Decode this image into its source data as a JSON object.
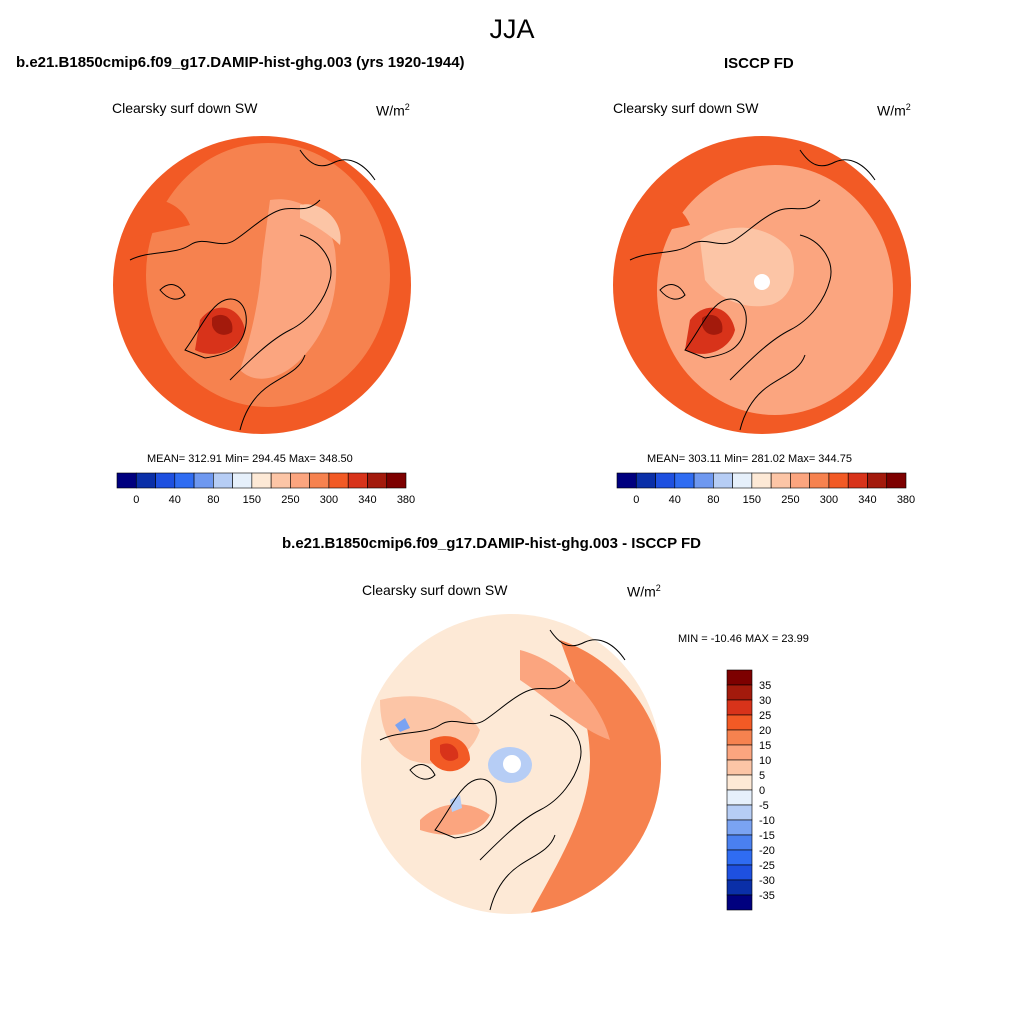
{
  "season_title": "JJA",
  "colors": {
    "abs_palette": [
      "#00007f",
      "#0a2fa8",
      "#1e50e0",
      "#2f6cf2",
      "#6e98f0",
      "#b6cdf5",
      "#e6f0fb",
      "#fde9d6",
      "#fcc5a6",
      "#fba57f",
      "#f6824f",
      "#f25a25",
      "#d8331a",
      "#a31a0c",
      "#7d0000"
    ],
    "diff_palette": [
      "#00007f",
      "#0a2fa8",
      "#1e50e0",
      "#2f6cf2",
      "#4a80f0",
      "#7aa3f2",
      "#b6cdf5",
      "#e6f0fb",
      "#fde9d6",
      "#fcc5a6",
      "#fba57f",
      "#f6824f",
      "#f25a25",
      "#d8331a",
      "#a31a0c",
      "#7d0000"
    ]
  },
  "panels": [
    {
      "title": "b.e21.B1850cmip6.f09_g17.DAMIP-hist-ghg.003 (yrs 1920-1944)",
      "variable": "Clearsky surf down SW",
      "units": {
        "base": "W/m",
        "exp": "2"
      },
      "stats": "MEAN= 312.91  Min= 294.45  Max= 348.50",
      "colorbar_labels": [
        "0",
        "40",
        "80",
        "150",
        "250",
        "300",
        "340",
        "380"
      ],
      "map": {
        "base": "#f6824f",
        "rim": "#f25a25",
        "pole_hole": false
      }
    },
    {
      "title": "ISCCP FD",
      "variable": "Clearsky surf down SW",
      "units": {
        "base": "W/m",
        "exp": "2"
      },
      "stats": "MEAN= 303.11  Min= 281.02  Max= 344.75",
      "colorbar_labels": [
        "0",
        "40",
        "80",
        "150",
        "250",
        "300",
        "340",
        "380"
      ],
      "map": {
        "base": "#f6824f",
        "rim": "#f25a25",
        "pole_hole": true
      }
    },
    {
      "title": "b.e21.B1850cmip6.f09_g17.DAMIP-hist-ghg.003 - ISCCP FD",
      "variable": "Clearsky surf down SW",
      "units": {
        "base": "W/m",
        "exp": "2"
      },
      "stats": "MIN = -10.46 MAX =  23.99",
      "colorbar_labels": [
        "35",
        "30",
        "25",
        "20",
        "15",
        "10",
        "5",
        "0",
        "-5",
        "-10",
        "-15",
        "-20",
        "-25",
        "-30",
        "-35"
      ],
      "map": {
        "base": "#fde9d6",
        "rim": "#f25a25",
        "pole_hole": true
      }
    }
  ]
}
